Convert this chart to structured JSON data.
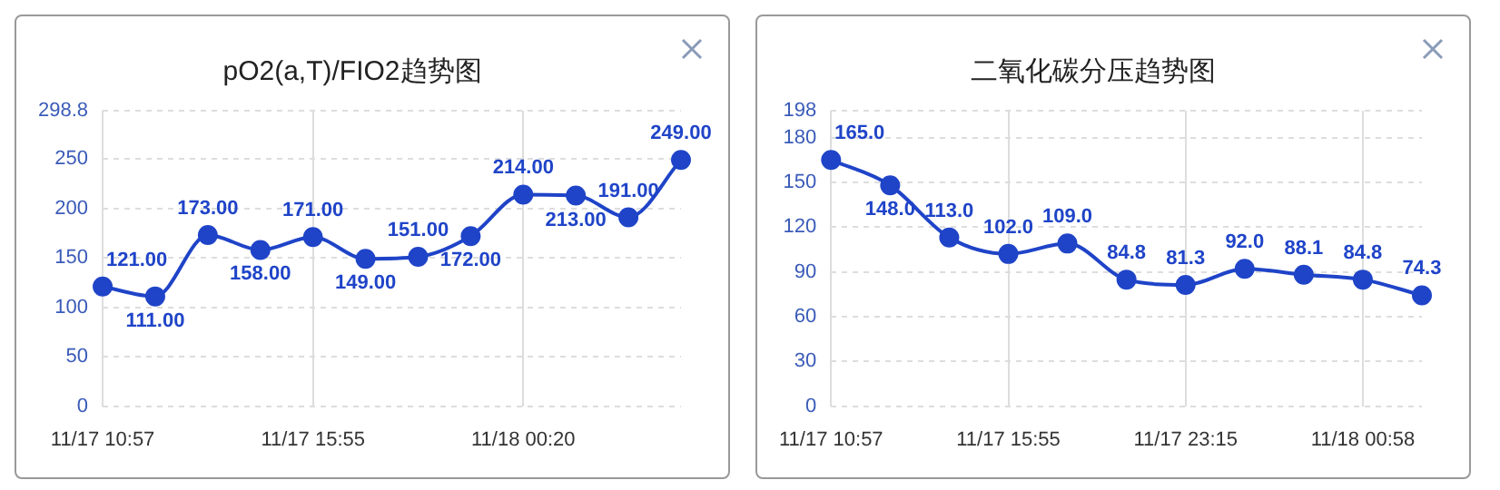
{
  "chart_data": [
    {
      "type": "line",
      "title": "pO2(a,T)/FIO2趋势图",
      "categories": [
        "11/17 10:57",
        null,
        null,
        null,
        "11/17 15:55",
        null,
        null,
        null,
        "11/18 00:20",
        null,
        null,
        null
      ],
      "series": [
        {
          "color": "#1f44c8",
          "values": [
            121,
            111,
            173,
            158,
            171,
            149,
            151,
            172,
            214,
            213,
            191,
            249
          ],
          "value_labels": [
            "121.00",
            "111.00",
            "173.00",
            "158.00",
            "171.00",
            "149.00",
            "151.00",
            "172.00",
            "214.00",
            "213.00",
            "191.00",
            "249.00"
          ]
        }
      ],
      "ylim": [
        0,
        298.8
      ],
      "yticks": [
        0,
        50,
        100,
        150,
        200,
        250,
        298.8
      ],
      "grid": true,
      "marker": "circle",
      "line_style": "solid",
      "legend": false
    },
    {
      "type": "line",
      "title": "二氧化碳分压趋势图",
      "categories": [
        "11/17 10:57",
        null,
        null,
        "11/17 15:55",
        null,
        null,
        "11/17 23:15",
        null,
        null,
        "11/18 00:58",
        null
      ],
      "series": [
        {
          "color": "#1f44c8",
          "values": [
            165,
            148,
            113,
            102,
            109,
            84.8,
            81.3,
            92,
            88.1,
            84.8,
            74.3
          ],
          "value_labels": [
            "165.0",
            "148.0",
            "113.0",
            "102.0",
            "109.0",
            "84.8",
            "81.3",
            "92.0",
            "88.1",
            "84.8",
            "74.3"
          ]
        }
      ],
      "ylim": [
        0,
        198
      ],
      "yticks": [
        0,
        30,
        60,
        90,
        120,
        150,
        180,
        198
      ],
      "grid": true,
      "marker": "circle",
      "line_style": "solid",
      "legend": false
    }
  ]
}
